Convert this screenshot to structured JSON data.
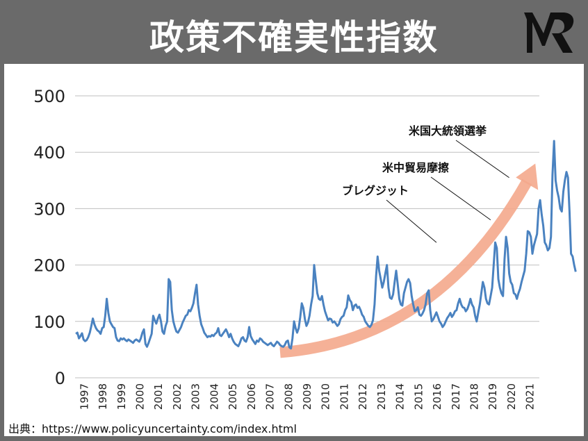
{
  "header": {
    "title": "政策不確実性指数"
  },
  "source": {
    "text": "出典：https://www.policyuncertainty.com/index.html"
  },
  "colors": {
    "header_bg": "#6a6a6a",
    "line": "#4a82c0",
    "trend_arrow": "#f4a98c",
    "grid": "#bfbfbf"
  },
  "chart_data": {
    "type": "line",
    "title": "",
    "xlabel": "",
    "ylabel": "",
    "ylim": [
      0,
      500
    ],
    "yticks": [
      0,
      100,
      200,
      300,
      400,
      500
    ],
    "xticks": [
      "1997",
      "1998",
      "1999",
      "2000",
      "2001",
      "2002",
      "2003",
      "2004",
      "2005",
      "2006",
      "2007",
      "2008",
      "2009",
      "2010",
      "2011",
      "2012",
      "2013",
      "2014",
      "2015",
      "2016",
      "2017",
      "2018",
      "2019",
      "2020",
      "2021"
    ],
    "grid": true,
    "series": [
      {
        "name": "",
        "x_start": "1997-01",
        "frequency": "monthly",
        "values": [
          78,
          80,
          70,
          74,
          79,
          68,
          65,
          67,
          72,
          80,
          92,
          105,
          95,
          88,
          84,
          82,
          78,
          88,
          90,
          110,
          140,
          115,
          100,
          95,
          90,
          88,
          72,
          66,
          65,
          70,
          68,
          70,
          67,
          65,
          68,
          66,
          64,
          62,
          66,
          68,
          66,
          64,
          70,
          80,
          86,
          60,
          55,
          62,
          70,
          78,
          110,
          102,
          96,
          105,
          112,
          100,
          82,
          78,
          92,
          100,
          175,
          170,
          120,
          100,
          90,
          82,
          80,
          85,
          90,
          98,
          104,
          110,
          112,
          120,
          118,
          124,
          132,
          150,
          165,
          130,
          110,
          95,
          88,
          80,
          76,
          72,
          74,
          73,
          76,
          74,
          78,
          80,
          88,
          76,
          74,
          78,
          82,
          86,
          80,
          72,
          78,
          70,
          64,
          60,
          58,
          56,
          62,
          70,
          72,
          66,
          64,
          72,
          90,
          74,
          68,
          64,
          60,
          66,
          64,
          70,
          68,
          64,
          62,
          60,
          58,
          60,
          62,
          58,
          56,
          60,
          64,
          62,
          58,
          56,
          55,
          58,
          64,
          66,
          54,
          52,
          70,
          100,
          88,
          80,
          88,
          108,
          132,
          124,
          104,
          92,
          98,
          110,
          130,
          145,
          200,
          175,
          150,
          140,
          138,
          145,
          130,
          118,
          110,
          102,
          105,
          104,
          98,
          100,
          96,
          92,
          95,
          104,
          108,
          110,
          120,
          125,
          146,
          138,
          134,
          120,
          128,
          130,
          124,
          126,
          120,
          112,
          108,
          100,
          96,
          92,
          90,
          94,
          102,
          130,
          180,
          215,
          190,
          175,
          160,
          170,
          185,
          200,
          160,
          142,
          140,
          148,
          170,
          190,
          165,
          140,
          130,
          128,
          150,
          160,
          170,
          175,
          168,
          145,
          130,
          118,
          120,
          125,
          112,
          110,
          114,
          120,
          130,
          150,
          155,
          120,
          100,
          104,
          110,
          116,
          108,
          100,
          96,
          90,
          94,
          100,
          106,
          110,
          115,
          108,
          112,
          118,
          120,
          132,
          140,
          130,
          125,
          124,
          118,
          122,
          130,
          140,
          130,
          125,
          110,
          100,
          115,
          130,
          150,
          170,
          160,
          140,
          132,
          130,
          145,
          160,
          200,
          240,
          230,
          175,
          160,
          150,
          145,
          210,
          250,
          230,
          185,
          170,
          165,
          150,
          148,
          140,
          150,
          158,
          170,
          180,
          190,
          220,
          260,
          258,
          250,
          220,
          235,
          245,
          255,
          300,
          315,
          290,
          270,
          240,
          235,
          226,
          230,
          250,
          360,
          420,
          350,
          332,
          320,
          300,
          295,
          330,
          350,
          365,
          355,
          295,
          220,
          215,
          200,
          188
        ]
      }
    ],
    "annotations": [
      {
        "label": "ブレグジット",
        "x": "2016-06",
        "y": 240
      },
      {
        "label": "米中貿易摩擦",
        "x": "2019-05",
        "y": 280
      },
      {
        "label": "米国大統領選挙",
        "x": "2020-05",
        "y": 355
      }
    ],
    "trend_arrow": {
      "from": [
        "2008-01",
        45
      ],
      "to": [
        "2021-09",
        375
      ]
    }
  }
}
